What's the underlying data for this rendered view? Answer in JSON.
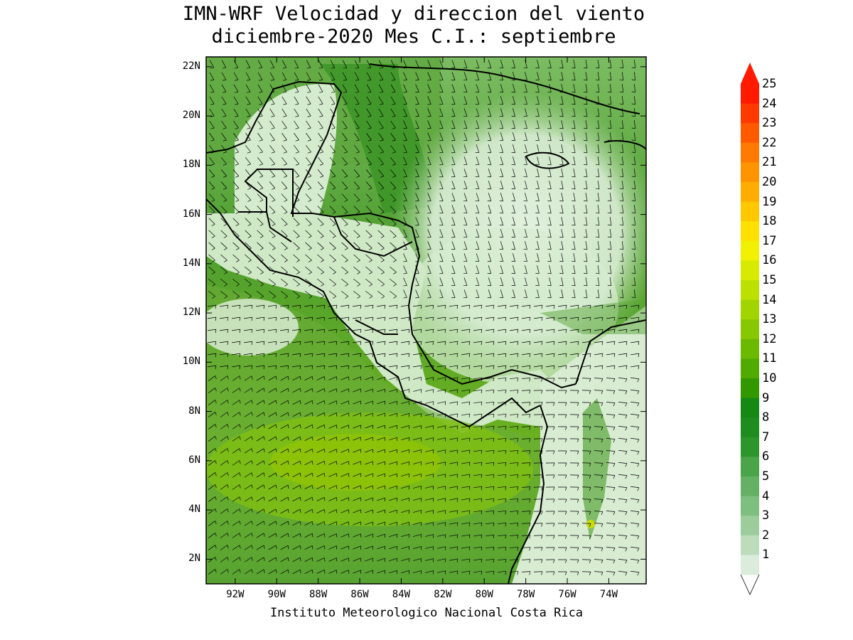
{
  "title_line1": "IMN-WRF Velocidad y direccion del viento",
  "title_line2": "diciembre-2020 Mes C.I.: septiembre",
  "credit": "Instituto Meteorologico Nacional Costa Rica",
  "lat_labels": [
    "22N",
    "20N",
    "18N",
    "16N",
    "14N",
    "12N",
    "10N",
    "8N",
    "6N",
    "4N",
    "2N"
  ],
  "lon_labels": [
    "92W",
    "90W",
    "88W",
    "86W",
    "84W",
    "82W",
    "80W",
    "78W",
    "76W",
    "74W"
  ],
  "map_extent": {
    "lon_min": -93.4,
    "lon_max": -72.2,
    "lat_min": 1.0,
    "lat_max": 22.4
  },
  "colorbar": {
    "labels": [
      "25",
      "24",
      "23",
      "22",
      "21",
      "20",
      "19",
      "18",
      "17",
      "16",
      "15",
      "14",
      "13",
      "12",
      "11",
      "10",
      "9",
      "8",
      "7",
      "6",
      "5",
      "4",
      "3",
      "2",
      "1"
    ],
    "colors": [
      "#ff1a00",
      "#ff3a00",
      "#ff5a00",
      "#ff7a00",
      "#ff9400",
      "#ffad00",
      "#ffc800",
      "#ffe000",
      "#f0f000",
      "#d8ea00",
      "#bce000",
      "#a2d400",
      "#88c800",
      "#6cba00",
      "#50aa00",
      "#329800",
      "#148a14",
      "#1e8c1e",
      "#2c962c",
      "#4aa44a",
      "#64b064",
      "#7ebe7e",
      "#9ccc9c",
      "#bcdcbc",
      "#dcecdc"
    ]
  },
  "colors": {
    "lowland_pale": "#dcefd8",
    "ocean_green": "#5aa838",
    "strong_green": "#78b81c",
    "deep_green": "#2f8f20"
  }
}
